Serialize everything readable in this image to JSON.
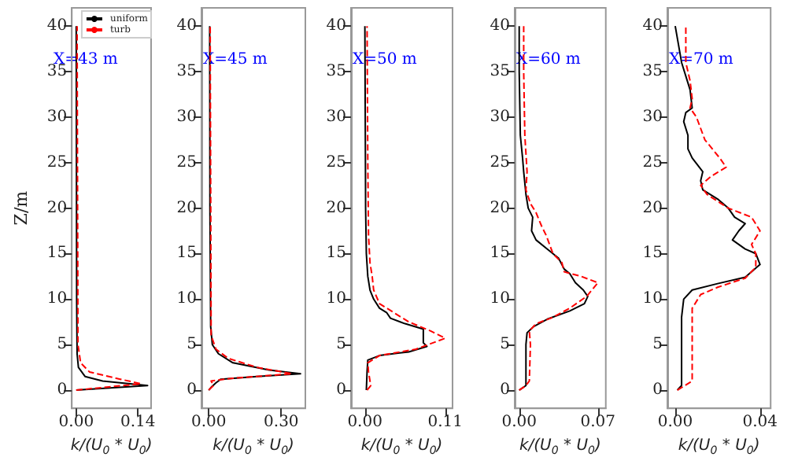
{
  "chart_data": [
    {
      "type": "line",
      "ylabel": "Z/m",
      "xlabel": "k/(U$_{0}$ * U$_{0}$)",
      "annotations": [
        "X=43 m"
      ],
      "legend": "top right",
      "grid": false,
      "marker": "none",
      "xlim": [
        -0.01,
        0.17
      ],
      "xticks": [
        {
          "value": 0,
          "label": "0.00"
        },
        0.14
      ],
      "ylim": [
        -2,
        42
      ],
      "yticks": [
        0,
        5,
        10,
        15,
        20,
        25,
        30,
        35,
        40
      ],
      "series": [
        {
          "name": "uniform",
          "color": "#000000",
          "line_style": "solid",
          "x": [
            0,
            0.162,
            0.06,
            0.02,
            0.005,
            0.002,
            0.001,
            0
          ],
          "values": [
            0,
            0.5,
            1,
            1.5,
            2.5,
            4,
            10,
            40
          ]
        },
        {
          "name": "turb",
          "color": "#ff0000",
          "line_style": "dashed",
          "x": [
            0,
            0.147,
            0.1,
            0.03,
            0.01,
            0.004,
            0.002
          ],
          "values": [
            0,
            0.7,
            1.2,
            2,
            3,
            5,
            40
          ]
        }
      ]
    },
    {
      "type": "line",
      "xlabel": "k/(U$_{0}$ * U$_{0}$)",
      "annotations": [
        "X=45 m"
      ],
      "grid": false,
      "marker": "none",
      "xlim": [
        -0.03,
        0.4
      ],
      "xticks": [
        {
          "value": 0,
          "label": "0.00"
        },
        {
          "value": 0.3,
          "label": "0.30"
        }
      ],
      "ylim": [
        -2,
        42
      ],
      "yticks": [
        0,
        5,
        10,
        15,
        20,
        25,
        30,
        35,
        40
      ],
      "series": [
        {
          "color": "#000000",
          "line_style": "solid",
          "x": [
            0,
            0.01,
            0.03,
            0.05,
            0.2,
            0.38,
            0.25,
            0.1,
            0.04,
            0.015,
            0.008,
            0.005,
            0.004
          ],
          "values": [
            0,
            0.3,
            0.8,
            1.2,
            1.5,
            1.8,
            2.2,
            3,
            4,
            5,
            7,
            20,
            40
          ]
        },
        {
          "color": "#ff0000",
          "line_style": "dashed",
          "x": [
            0,
            0.02,
            0.01,
            0.1,
            0.345,
            0.2,
            0.08,
            0.03,
            0.01,
            0.006
          ],
          "values": [
            0,
            0.5,
            1,
            1.3,
            1.8,
            2.5,
            3.5,
            4.5,
            6,
            40
          ]
        }
      ]
    },
    {
      "type": "line",
      "xlabel": "k/(U$_{0}$ * U$_{0}$)",
      "annotations": [
        "X=50 m"
      ],
      "grid": false,
      "marker": "none",
      "xlim": [
        -0.019,
        0.12
      ],
      "xticks": [
        {
          "value": 0,
          "label": "0.00"
        },
        0.11
      ],
      "ylim": [
        -2,
        42
      ],
      "yticks": [
        0,
        5,
        10,
        15,
        20,
        25,
        30,
        35,
        40
      ],
      "series": [
        {
          "color": "#000000",
          "line_style": "solid",
          "x": [
            0.002,
            0.003,
            0.004,
            0.02,
            0.06,
            0.085,
            0.08,
            0.08,
            0.08,
            0.055,
            0.035,
            0.03,
            0.02,
            0.012,
            0.007,
            0.004,
            0.002,
            0.001,
            0
          ],
          "values": [
            0,
            2,
            3.3,
            3.8,
            4.2,
            4.8,
            5.2,
            6,
            6.7,
            7.3,
            7.9,
            8.5,
            9,
            10,
            11,
            12.5,
            15,
            20,
            40
          ]
        },
        {
          "color": "#ff0000",
          "line_style": "dashed",
          "x": [
            0.003,
            0.008,
            0.005,
            0.004,
            0.02,
            0.07,
            0.11,
            0.09,
            0.06,
            0.04,
            0.02,
            0.012,
            0.01,
            0.007,
            0.005,
            0.004,
            0.003
          ],
          "values": [
            0,
            0.5,
            2,
            3,
            3.8,
            4.5,
            5.7,
            6.5,
            7.5,
            8.5,
            9.5,
            11,
            12.5,
            14,
            17,
            25,
            40
          ]
        }
      ]
    },
    {
      "type": "line",
      "xlabel": "k/(U$_{0}$ * U$_{0}$)",
      "annotations": [
        "X=60 m"
      ],
      "grid": false,
      "marker": "none",
      "xlim": [
        -0.004,
        0.077
      ],
      "xticks": [
        {
          "value": 0,
          "label": "0.00"
        },
        0.07
      ],
      "ylim": [
        -2,
        42
      ],
      "yticks": [
        0,
        5,
        10,
        15,
        20,
        25,
        30,
        35,
        40
      ],
      "series": [
        {
          "color": "#000000",
          "line_style": "solid",
          "x": [
            0,
            0.006,
            0.006,
            0.007,
            0.013,
            0.025,
            0.045,
            0.058,
            0.061,
            0.057,
            0.05,
            0.045,
            0.04,
            0.035,
            0.025,
            0.015,
            0.011,
            0.012,
            0.008,
            0.006,
            0.004,
            0.003,
            0.001,
            0,
            0
          ],
          "values": [
            0,
            0.5,
            5,
            6.3,
            7,
            7.8,
            8.7,
            9.5,
            10.3,
            11,
            11.8,
            12.8,
            13.3,
            14.5,
            15.5,
            16.5,
            17.5,
            19,
            20,
            21.5,
            24,
            25.5,
            28,
            35,
            40
          ]
        },
        {
          "color": "#ff0000",
          "line_style": "dashed",
          "x": [
            0,
            0.006,
            0.009,
            0.01,
            0.009,
            0.015,
            0.03,
            0.045,
            0.06,
            0.07,
            0.055,
            0.04,
            0.038,
            0.03,
            0.027,
            0.024,
            0.02,
            0.015,
            0.01,
            0.006,
            0.007,
            0.005,
            0.004,
            0.004
          ],
          "values": [
            0,
            0.5,
            1,
            5,
            6.5,
            7.3,
            8,
            9,
            10.3,
            11.8,
            12.5,
            13,
            14,
            15,
            16,
            17,
            18,
            19.5,
            20.5,
            22,
            24,
            28,
            35,
            40
          ]
        }
      ]
    },
    {
      "type": "line",
      "xlabel": "k/(U$_{0}$ * U$_{0}$)",
      "annotations": [
        "X=70 m"
      ],
      "grid": false,
      "marker": "none",
      "xlim": [
        -0.0037,
        0.045
      ],
      "xticks": [
        {
          "value": 0,
          "label": "0.00"
        },
        {
          "value": 0.04,
          "label": "0.04"
        }
      ],
      "ylim": [
        -2,
        42
      ],
      "yticks": [
        0,
        5,
        10,
        15,
        20,
        25,
        30,
        35,
        40
      ],
      "series": [
        {
          "color": "#000000",
          "line_style": "solid",
          "x": [
            0.001,
            0.003,
            0.003,
            0.003,
            0.004,
            0.008,
            0.02,
            0.033,
            0.04,
            0.038,
            0.033,
            0.027,
            0.03,
            0.033,
            0.028,
            0.025,
            0.02,
            0.013,
            0.012,
            0.013,
            0.008,
            0.006,
            0.006,
            0.004,
            0.005,
            0.008,
            0.007,
            0.003,
            0
          ],
          "values": [
            0,
            0.5,
            3,
            8,
            10,
            11,
            11.7,
            12.4,
            13.8,
            15,
            15.5,
            16.5,
            17.5,
            18.3,
            19,
            20,
            21,
            22,
            23,
            24,
            25.5,
            26.5,
            28,
            29.5,
            30.5,
            31,
            33,
            36,
            40
          ]
        },
        {
          "color": "#ff0000",
          "line_style": "dashed",
          "x": [
            0.001,
            0.008,
            0.008,
            0.008,
            0.012,
            0.02,
            0.033,
            0.038,
            0.038,
            0.036,
            0.04,
            0.036,
            0.025,
            0.015,
            0.012,
            0.017,
            0.024,
            0.021,
            0.014,
            0.01,
            0.007,
            0.008,
            0.007,
            0.005,
            0.005
          ],
          "values": [
            0,
            1,
            5,
            9,
            10.5,
            11.3,
            12.3,
            13.5,
            15,
            16,
            17.5,
            19,
            20,
            21.5,
            22.5,
            23.5,
            24.5,
            25.5,
            27.5,
            30,
            31,
            32,
            34,
            36,
            40
          ]
        }
      ]
    }
  ]
}
